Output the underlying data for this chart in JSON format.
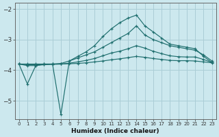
{
  "xlabel": "Humidex (Indice chaleur)",
  "background_color": "#cce8ee",
  "grid_color": "#aacdd6",
  "line_color": "#1e6e6e",
  "xlim": [
    -0.5,
    23.5
  ],
  "ylim": [
    -5.6,
    -1.8
  ],
  "xticks": [
    0,
    1,
    2,
    3,
    4,
    5,
    6,
    7,
    8,
    9,
    10,
    11,
    12,
    13,
    14,
    15,
    16,
    17,
    18,
    19,
    20,
    21,
    22,
    23
  ],
  "yticks": [
    -5,
    -4,
    -3,
    -2
  ],
  "lines": [
    {
      "x": [
        0,
        1,
        2,
        3,
        4,
        5,
        6,
        7,
        8,
        9,
        10,
        11,
        12,
        13,
        14,
        15,
        16,
        17,
        18,
        19,
        20,
        21,
        22,
        23
      ],
      "y": [
        -3.8,
        -4.45,
        -3.85,
        -3.8,
        -3.8,
        -5.45,
        -3.7,
        -3.55,
        -3.4,
        -3.2,
        -2.9,
        -2.65,
        -2.45,
        -2.3,
        -2.2,
        -2.55,
        -2.75,
        -2.95,
        -3.15,
        -3.2,
        -3.25,
        -3.3,
        -3.55,
        -3.75
      ]
    },
    {
      "x": [
        0,
        1,
        2,
        3,
        4,
        5,
        6,
        7,
        8,
        9,
        10,
        11,
        12,
        13,
        14,
        15,
        16,
        17,
        18,
        19,
        20,
        21,
        22,
        23
      ],
      "y": [
        -3.8,
        -3.85,
        -3.85,
        -3.82,
        -3.8,
        -3.78,
        -3.7,
        -3.6,
        -3.5,
        -3.4,
        -3.25,
        -3.1,
        -2.95,
        -2.8,
        -2.55,
        -2.85,
        -3.0,
        -3.1,
        -3.2,
        -3.25,
        -3.3,
        -3.35,
        -3.5,
        -3.7
      ]
    },
    {
      "x": [
        0,
        1,
        2,
        3,
        4,
        5,
        6,
        7,
        8,
        9,
        10,
        11,
        12,
        13,
        14,
        15,
        16,
        17,
        18,
        19,
        20,
        21,
        22,
        23
      ],
      "y": [
        -3.8,
        -3.82,
        -3.82,
        -3.82,
        -3.81,
        -3.8,
        -3.77,
        -3.73,
        -3.68,
        -3.62,
        -3.53,
        -3.44,
        -3.38,
        -3.3,
        -3.2,
        -3.28,
        -3.38,
        -3.46,
        -3.53,
        -3.56,
        -3.57,
        -3.57,
        -3.65,
        -3.75
      ]
    },
    {
      "x": [
        0,
        1,
        2,
        3,
        4,
        5,
        6,
        7,
        8,
        9,
        10,
        11,
        12,
        13,
        14,
        15,
        16,
        17,
        18,
        19,
        20,
        21,
        22,
        23
      ],
      "y": [
        -3.8,
        -3.8,
        -3.8,
        -3.8,
        -3.8,
        -3.8,
        -3.79,
        -3.78,
        -3.76,
        -3.73,
        -3.7,
        -3.66,
        -3.63,
        -3.59,
        -3.55,
        -3.58,
        -3.62,
        -3.65,
        -3.68,
        -3.69,
        -3.69,
        -3.7,
        -3.73,
        -3.76
      ]
    }
  ]
}
